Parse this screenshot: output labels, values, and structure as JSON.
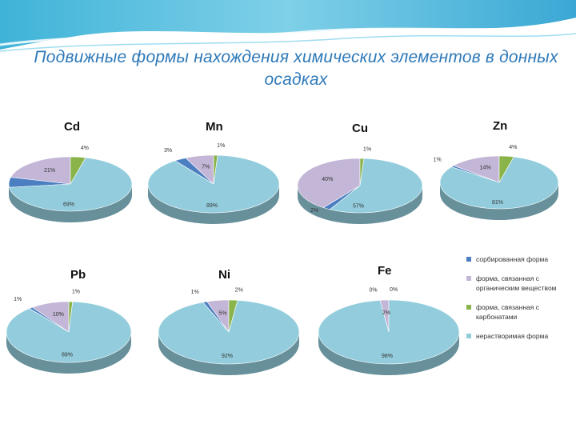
{
  "title": "Подвижные формы нахождения химических элементов в донных осадках",
  "colors": {
    "sorbed": "#4b7fc1",
    "organic": "#c3b6d6",
    "carbonate": "#8ab34a",
    "insoluble": "#93cddd"
  },
  "legend": [
    {
      "key": "sorbed",
      "label": "сорбированная форма"
    },
    {
      "key": "organic",
      "label": "форма, связанная с органическим веществом"
    },
    {
      "key": "carbonate",
      "label": "форма, связанная с карбонатами"
    },
    {
      "key": "insoluble",
      "label": "нерастворимая форма"
    }
  ],
  "chart_data": [
    {
      "type": "pie",
      "title": "Cd",
      "categories": [
        "сорбированная форма",
        "форма, связанная с органическим веществом",
        "форма, связанная с карбонатами",
        "нерастворимая форма"
      ],
      "values": [
        6,
        21,
        4,
        69
      ],
      "labels": [
        "6%",
        "21%",
        "4%",
        "69%"
      ]
    },
    {
      "type": "pie",
      "title": "Mn",
      "categories": [
        "сорбированная форма",
        "форма, связанная с органическим веществом",
        "форма, связанная с карбонатами",
        "нерастворимая форма"
      ],
      "values": [
        3,
        7,
        1,
        89
      ],
      "labels": [
        "3%",
        "7%",
        "1%",
        "89%"
      ]
    },
    {
      "type": "pie",
      "title": "Cu",
      "categories": [
        "сорбированная форма",
        "форма, связанная с органическим веществом",
        "форма, связанная с карбонатами",
        "нерастворимая форма"
      ],
      "values": [
        2,
        40,
        1,
        57
      ],
      "labels": [
        "2%",
        "40%",
        "1%",
        "57%"
      ]
    },
    {
      "type": "pie",
      "title": "Zn",
      "categories": [
        "сорбированная форма",
        "форма, связанная с органическим веществом",
        "форма, связанная с карбонатами",
        "нерастворимая форма"
      ],
      "values": [
        1,
        14,
        4,
        81
      ],
      "labels": [
        "1%",
        "14%",
        "4%",
        "81%"
      ]
    },
    {
      "type": "pie",
      "title": "Pb",
      "categories": [
        "сорбированная форма",
        "форма, связанная с органическим веществом",
        "форма, связанная с карбонатами",
        "нерастворимая форма"
      ],
      "values": [
        1,
        10,
        1,
        89
      ],
      "labels": [
        "1%",
        "10%",
        "1%",
        "89%"
      ]
    },
    {
      "type": "pie",
      "title": "Ni",
      "categories": [
        "сорбированная форма",
        "форма, связанная с органическим веществом",
        "форма, связанная с карбонатами",
        "нерастворимая форма"
      ],
      "values": [
        1,
        5,
        2,
        92
      ],
      "labels": [
        "1%",
        "5%",
        "2%",
        "92%"
      ]
    },
    {
      "type": "pie",
      "title": "Fe",
      "categories": [
        "сорбированная форма",
        "форма, связанная с органическим веществом",
        "форма, связанная с карбонатами",
        "нерастворимая форма"
      ],
      "values": [
        0,
        2,
        0,
        98
      ],
      "labels": [
        "0%",
        "2%",
        "0%",
        "98%"
      ]
    }
  ]
}
